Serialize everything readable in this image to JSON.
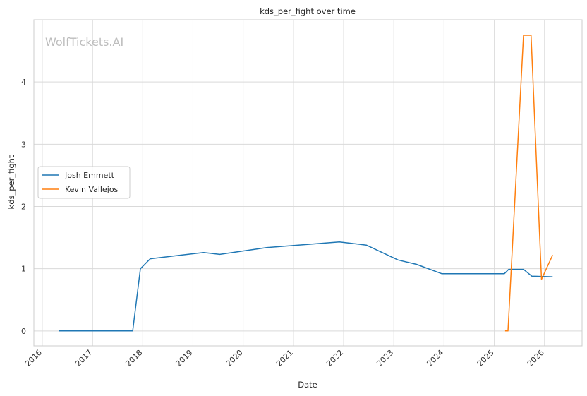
{
  "chart_data": {
    "type": "line",
    "title": "kds_per_fight over time",
    "xlabel": "Date",
    "ylabel": "kds_per_fight",
    "watermark": "WolfTickets.AI",
    "grid": true,
    "legend_position": "center-left",
    "xlim": [
      "2015-11-01",
      "2026-10-01"
    ],
    "ylim": [
      -0.24,
      5.0
    ],
    "xticks": [
      "2016",
      "2017",
      "2018",
      "2019",
      "2020",
      "2021",
      "2022",
      "2023",
      "2024",
      "2025",
      "2026"
    ],
    "yticks": [
      0,
      1,
      2,
      3,
      4
    ],
    "series": [
      {
        "name": "Josh Emmett",
        "color": "#1f77b4",
        "points": [
          [
            "2016-05-01",
            0.0
          ],
          [
            "2017-10-20",
            0.0
          ],
          [
            "2017-12-15",
            1.0
          ],
          [
            "2018-02-24",
            1.16
          ],
          [
            "2019-03-20",
            1.26
          ],
          [
            "2019-07-15",
            1.23
          ],
          [
            "2020-06-20",
            1.34
          ],
          [
            "2021-12-01",
            1.43
          ],
          [
            "2022-06-15",
            1.38
          ],
          [
            "2023-02-01",
            1.14
          ],
          [
            "2023-06-15",
            1.07
          ],
          [
            "2023-12-15",
            0.92
          ],
          [
            "2025-03-15",
            0.92
          ],
          [
            "2025-04-15",
            0.99
          ],
          [
            "2025-08-01",
            0.99
          ],
          [
            "2025-10-01",
            0.88
          ],
          [
            "2026-03-01",
            0.87
          ]
        ]
      },
      {
        "name": "Kevin Vallejos",
        "color": "#ff7f0e",
        "points": [
          [
            "2025-03-20",
            0.0
          ],
          [
            "2025-04-10",
            0.0
          ],
          [
            "2025-08-01",
            4.75
          ],
          [
            "2025-09-25",
            4.75
          ],
          [
            "2025-12-10",
            0.83
          ],
          [
            "2026-03-01",
            1.22
          ]
        ]
      }
    ]
  }
}
